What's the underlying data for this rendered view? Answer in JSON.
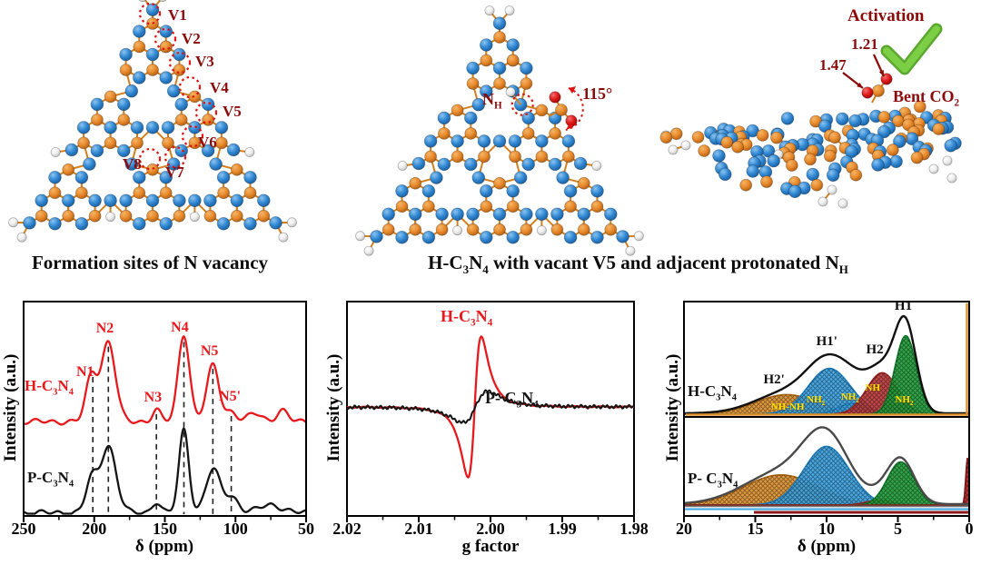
{
  "figure": {
    "background": "#ffffff",
    "captions": {
      "left": "Formation sites of N vacancy",
      "right_rich": "H-C_3_N_4_ with vacant V5 and adjacent protonated N_H_"
    },
    "structures": {
      "left": {
        "vacancy_labels": [
          "V1",
          "V2",
          "V3",
          "V4",
          "V5",
          "V6",
          "V7",
          "V8"
        ]
      },
      "middle": {
        "nh_label_rich": "N_H_",
        "angle_label": "115°"
      },
      "right": {
        "activation_label": "Activation",
        "bond_length_co": "1.21",
        "bond_length_cn": "1.47",
        "bent_co2_rich": "Bent CO_2_",
        "check_icon": "green-checkmark"
      }
    },
    "palette": {
      "nitrogen_blue": "#2f87d2",
      "carbon_orange": "#e8892b",
      "hydrogen_white": "#ededed",
      "oxygen_red": "#dd1a1a",
      "annotation_dark_red": "#8b0a0a",
      "check_green": "#7ccf44",
      "series_red": "#e8191d",
      "series_black": "#141414",
      "fit_orange": "#e0922f",
      "fit_blue": "#3aa3e3",
      "fit_red": "#c03a3a",
      "fit_green": "#1f9e3a",
      "component_label_yellow": "#ffe400"
    }
  },
  "chart_data": [
    {
      "type": "line",
      "id": "15N NMR",
      "xlabel": "δ (ppm)",
      "ylabel": "Intensity (a.u.)",
      "x_range": [
        250,
        50
      ],
      "x_ticks": [
        "250",
        "200",
        "150",
        "100",
        "50"
      ],
      "x_axis_reversed": true,
      "grid": false,
      "guide_lines_ppm": [
        201,
        190,
        156,
        136.5,
        116,
        103
      ],
      "peak_labels": [
        {
          "text": "N1",
          "ppm": 205
        },
        {
          "text": "N2",
          "ppm": 191
        },
        {
          "text": "N3",
          "ppm": 157
        },
        {
          "text": "N4",
          "ppm": 138
        },
        {
          "text": "N5",
          "ppm": 117
        },
        {
          "text": "N5'",
          "ppm": 104
        }
      ],
      "series": [
        {
          "name_rich": "H-C_3_N_4_",
          "color": "#e8191d",
          "baseline_frac": 0.44,
          "peaks": [
            {
              "center": 202,
              "sigma": 4,
              "amp": 0.28
            },
            {
              "center": 190,
              "sigma": 5,
              "amp": 0.5
            },
            {
              "center": 156,
              "sigma": 3,
              "amp": 0.075
            },
            {
              "center": 136.5,
              "sigma": 4,
              "amp": 0.55
            },
            {
              "center": 116,
              "sigma": 4.5,
              "amp": 0.35
            },
            {
              "center": 103,
              "sigma": 4,
              "amp": 0.06
            },
            {
              "center": 86,
              "sigma": 5,
              "amp": 0.05
            },
            {
              "center": 67,
              "sigma": 4,
              "amp": 0.07
            }
          ]
        },
        {
          "name_rich": "P-C_3_N_4_",
          "color": "#141414",
          "baseline_frac": 0.015,
          "peaks": [
            {
              "center": 202,
              "sigma": 4,
              "amp": 0.2
            },
            {
              "center": 190,
              "sigma": 5.5,
              "amp": 0.42
            },
            {
              "center": 156,
              "sigma": 3,
              "amp": 0.07
            },
            {
              "center": 136.5,
              "sigma": 3.5,
              "amp": 0.52
            },
            {
              "center": 116,
              "sigma": 5,
              "amp": 0.27
            },
            {
              "center": 103,
              "sigma": 5,
              "amp": 0.1
            },
            {
              "center": 75,
              "sigma": 8,
              "amp": 0.05
            }
          ]
        }
      ]
    },
    {
      "type": "line",
      "id": "EPR",
      "xlabel": "g factor",
      "ylabel": "Intensity (a.u.)",
      "x_range": [
        2.02,
        1.98
      ],
      "x_ticks": [
        "2.02",
        "2.01",
        "2.00",
        "1.99",
        "1.98"
      ],
      "x_axis_reversed": true,
      "grid": false,
      "series": [
        {
          "name_rich": "H-C_3_N_4_",
          "color": "#e8191d",
          "g_center": 2.0022,
          "linewidth": 0.0016,
          "amp_frac": 0.33
        },
        {
          "name_rich": "P- C_3_N_4_",
          "color": "#141414",
          "g_center": 2.0021,
          "linewidth": 0.003,
          "amp_frac": 0.073
        }
      ]
    },
    {
      "type": "area",
      "id": "1H NMR deconvolution",
      "xlabel": "δ (ppm)",
      "ylabel": "Intensity (a.u.)",
      "x_range": [
        20,
        0
      ],
      "x_ticks": [
        "20",
        "15",
        "10",
        "5",
        "0"
      ],
      "x_axis_reversed": true,
      "grid": false,
      "panels": [
        {
          "label_rich": "H-C_3_N_4_",
          "envelope_color": "#111111",
          "peak_labels": [
            {
              "text": "H2'",
              "ppm": 13.6
            },
            {
              "text": "H1'",
              "ppm": 9.9
            },
            {
              "text": "H2",
              "ppm": 6.4
            },
            {
              "text": "H1",
              "ppm": 4.4
            }
          ],
          "components": [
            {
              "label_rich": "NH-NH",
              "label_ppm": 13.0,
              "color": "#e0922f",
              "center": 12.8,
              "sigma": 2.2,
              "amp": 0.18
            },
            {
              "label_rich": "NH_2_",
              "label_ppm": 10.5,
              "color": "#3aa3e3",
              "center": 9.8,
              "sigma": 1.5,
              "amp": 0.42
            },
            {
              "label_rich": "NH_2_",
              "label_ppm": 8.1,
              "color": "#3aa3e3",
              "center": 8.2,
              "sigma": 1.0,
              "amp": 0.1
            },
            {
              "label_rich": "NH",
              "label_ppm": 6.4,
              "color": "#c03a3a",
              "center": 6.1,
              "sigma": 1.1,
              "amp": 0.38
            },
            {
              "label_rich": "NH_2_",
              "label_ppm": 4.3,
              "color": "#1f9e3a",
              "center": 4.45,
              "sigma": 0.75,
              "amp": 0.72
            }
          ]
        },
        {
          "label_rich": "P- C_3_N_4_",
          "envelope_color": "#4a4a4a",
          "peak_labels": [],
          "components": [
            {
              "label_rich": "",
              "label_ppm": null,
              "color": "#e0922f",
              "center": 13.2,
              "sigma": 2.6,
              "amp": 0.35
            },
            {
              "label_rich": "",
              "label_ppm": null,
              "color": "#3aa3e3",
              "center": 10.0,
              "sigma": 1.6,
              "amp": 0.68
            },
            {
              "label_rich": "",
              "label_ppm": null,
              "color": "#c03a3a",
              "center": 6.3,
              "sigma": 0.9,
              "amp": 0.06
            },
            {
              "label_rich": "",
              "label_ppm": null,
              "color": "#1f9e3a",
              "center": 4.8,
              "sigma": 0.95,
              "amp": 0.5
            },
            {
              "label_rich": "",
              "label_ppm": null,
              "color": "#b22222",
              "center": 0.12,
              "sigma": 0.12,
              "amp": 0.55
            }
          ]
        }
      ]
    }
  ]
}
